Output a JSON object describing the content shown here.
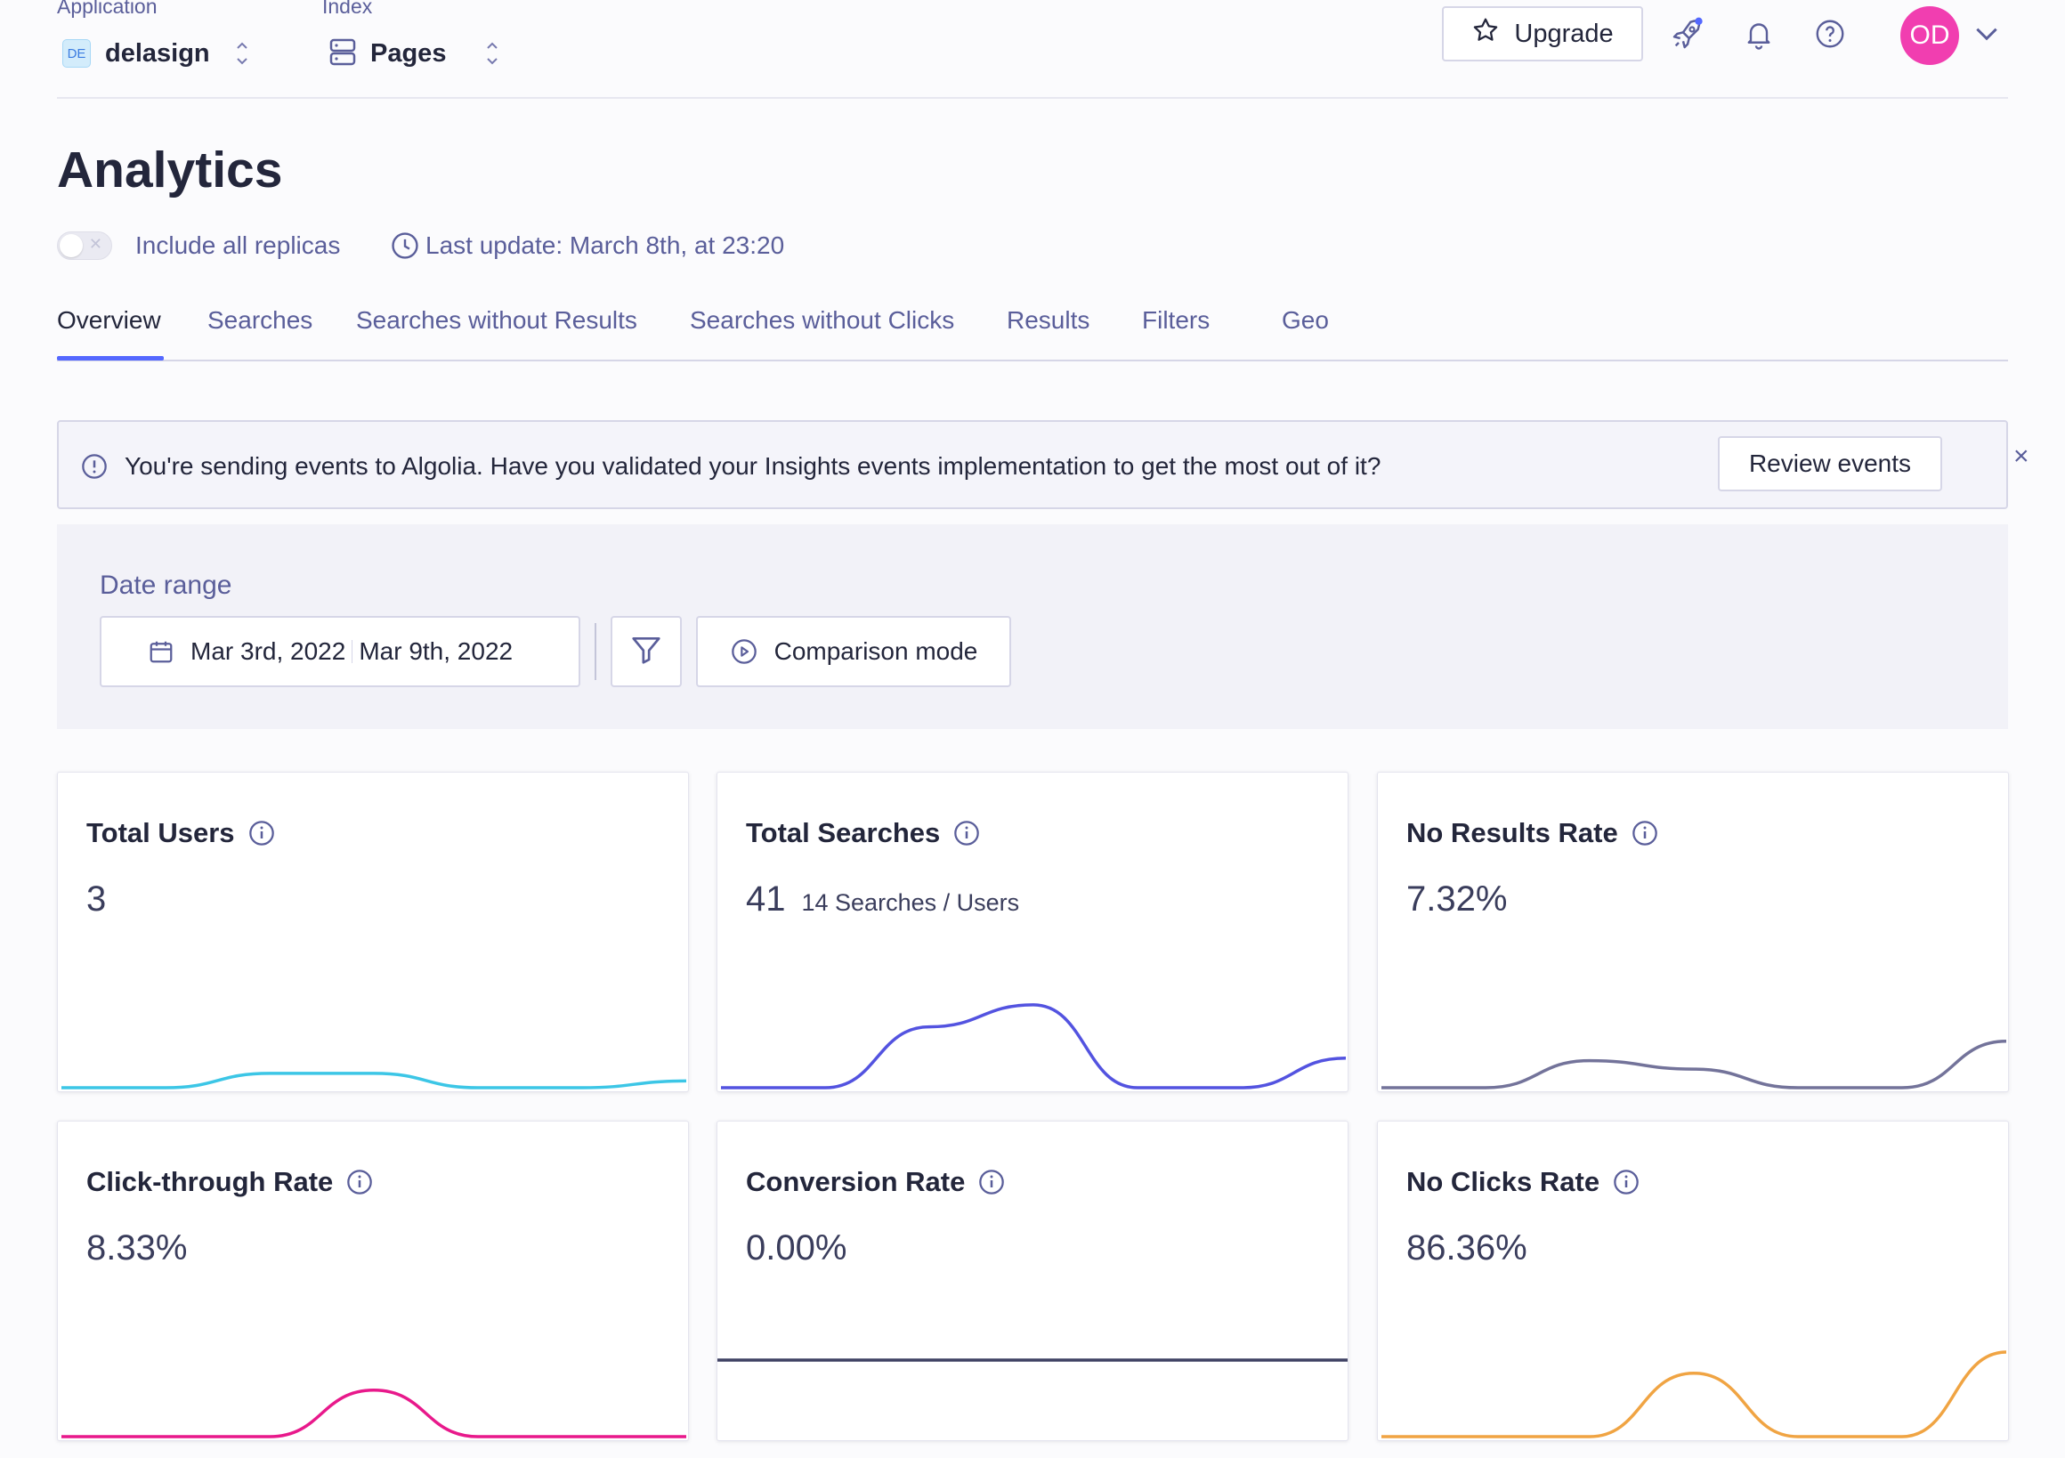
{
  "header": {
    "application": {
      "label": "Application",
      "badge": "DE",
      "value": "delasign"
    },
    "index": {
      "label": "Index",
      "value": "Pages"
    },
    "upgrade_label": "Upgrade",
    "avatar_initials": "OD"
  },
  "page": {
    "title": "Analytics",
    "replicas_label": "Include all replicas",
    "replicas_enabled": false,
    "last_update": "Last update: March 8th, at 23:20"
  },
  "tabs": [
    {
      "label": "Overview",
      "active": true
    },
    {
      "label": "Searches",
      "active": false
    },
    {
      "label": "Searches without Results",
      "active": false
    },
    {
      "label": "Searches without Clicks",
      "active": false
    },
    {
      "label": "Results",
      "active": false
    },
    {
      "label": "Filters",
      "active": false
    },
    {
      "label": "Geo",
      "active": false
    }
  ],
  "banner": {
    "text": "You're sending events to Algolia. Have you validated your Insights events implementation to get the most out of it?",
    "button_label": "Review events",
    "close_label": "×"
  },
  "date_range": {
    "label": "Date range",
    "start": "Mar 3rd, 2022",
    "end": "Mar 9th, 2022",
    "comparison_label": "Comparison mode"
  },
  "metrics": [
    {
      "title": "Total Users",
      "value": "3",
      "sub": "",
      "color": "#3cc6e6",
      "trend": [
        0,
        0,
        0.17,
        0.17,
        0,
        0,
        0.08
      ]
    },
    {
      "title": "Total Searches",
      "value": "41",
      "sub": "14 Searches / Users",
      "color": "#5353e0",
      "trend": [
        0,
        0,
        0.72,
        0.98,
        0,
        0,
        0.35
      ]
    },
    {
      "title": "No Results Rate",
      "value": "7.32%",
      "sub": "",
      "color": "#73739a",
      "trend": [
        0,
        0,
        0.32,
        0.22,
        0,
        0,
        0.55
      ]
    },
    {
      "title": "Click-through Rate",
      "value": "8.33%",
      "sub": "",
      "color": "#e8198b",
      "trend": [
        0,
        0,
        0,
        0.55,
        0,
        0,
        0
      ]
    },
    {
      "title": "Conversion Rate",
      "value": "0.00%",
      "sub": "",
      "color": "#3f4163",
      "trend": [
        0,
        0,
        0,
        0,
        0,
        0,
        0
      ]
    },
    {
      "title": "No Clicks Rate",
      "value": "86.36%",
      "sub": "",
      "color": "#f0a443",
      "trend": [
        0,
        0,
        0,
        0.75,
        0,
        0,
        1.0
      ]
    }
  ]
}
